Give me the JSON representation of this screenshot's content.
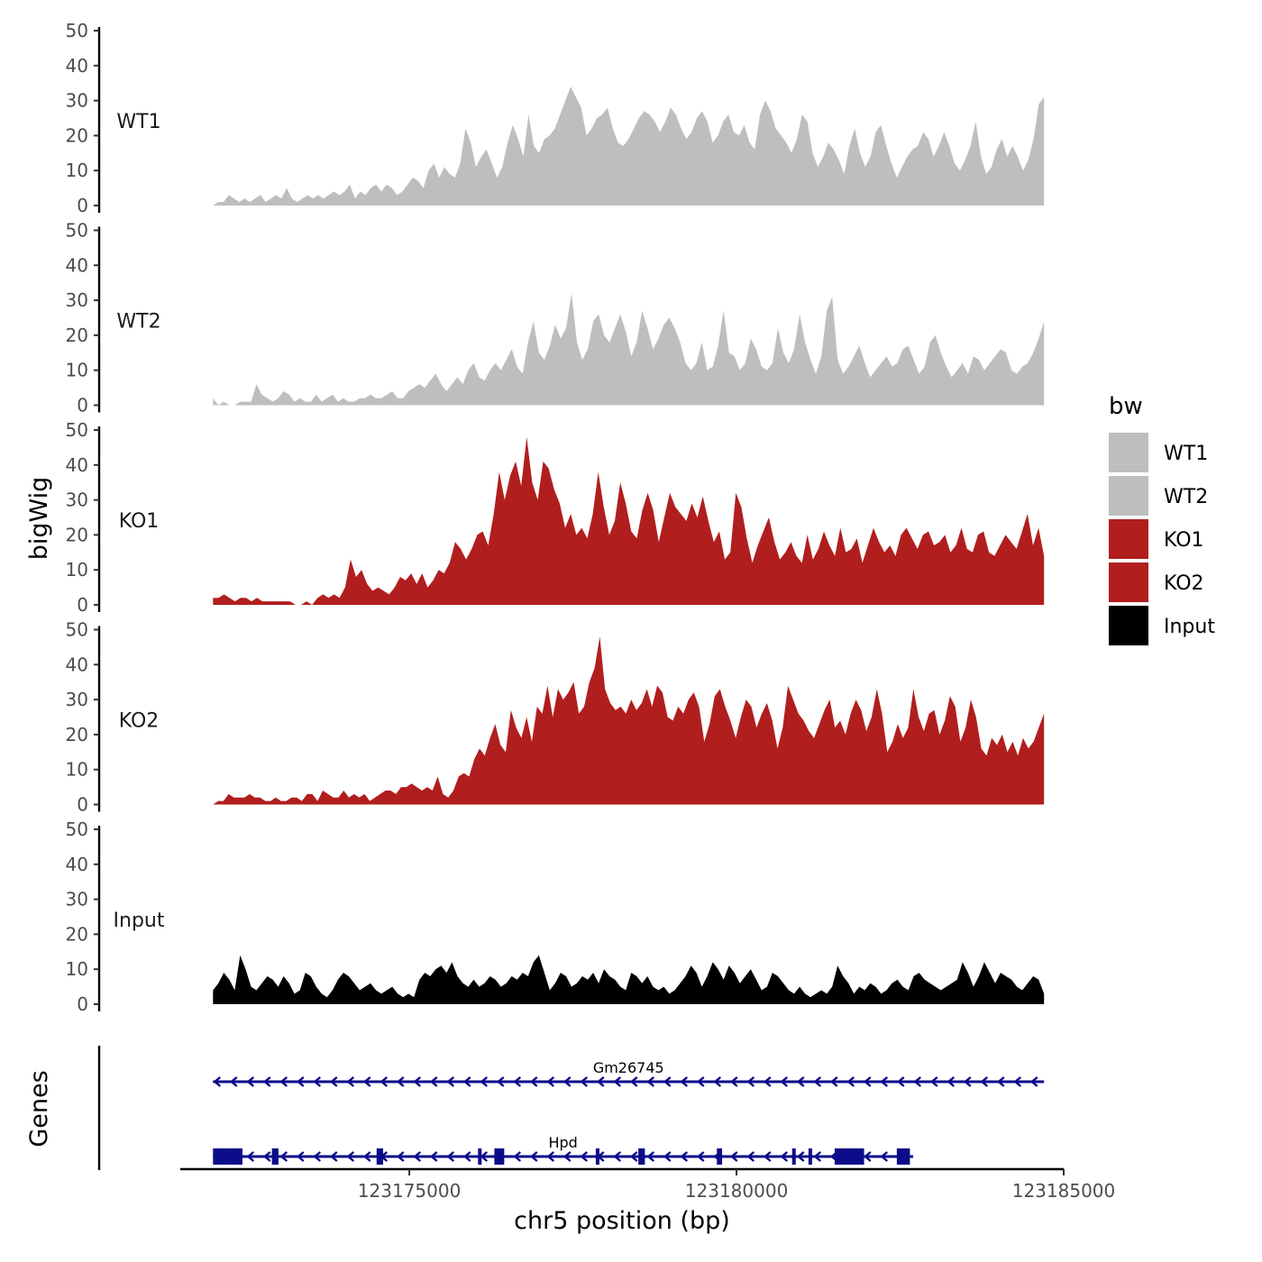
{
  "chart_data": {
    "type": "area",
    "chromosome_axis_label": "chr5 position (bp)",
    "y_axis_label": "bigWig",
    "genes_axis_label": "Genes",
    "xlim": [
      123171500,
      123185000
    ],
    "x_ticks": [
      123175000,
      123180000,
      123185000
    ],
    "x_tick_labels": [
      "123175000",
      "123180000",
      "123185000"
    ],
    "ylim": [
      0,
      50
    ],
    "y_ticks": [
      0,
      10,
      20,
      30,
      40,
      50
    ],
    "y_tick_labels": [
      "0",
      "10",
      "20",
      "30",
      "40",
      "50"
    ],
    "x_start": 123172000,
    "x_end": 123184700,
    "legend_title": "bw",
    "series": [
      {
        "name": "WT1",
        "color": "#bebebe",
        "values": [
          0,
          1,
          1,
          3,
          2,
          1,
          2,
          1,
          2,
          3,
          1,
          2,
          3,
          2,
          5,
          2,
          1,
          2,
          3,
          2,
          3,
          2,
          3,
          4,
          3,
          4,
          6,
          2,
          4,
          3,
          5,
          6,
          4,
          6,
          5,
          3,
          4,
          6,
          8,
          7,
          5,
          10,
          12,
          8,
          11,
          9,
          8,
          12,
          22,
          18,
          11,
          14,
          16,
          12,
          8,
          11,
          18,
          23,
          19,
          14,
          26,
          17,
          15,
          19,
          20,
          22,
          26,
          30,
          34,
          31,
          28,
          20,
          22,
          25,
          26,
          28,
          22,
          18,
          17,
          19,
          22,
          25,
          27,
          26,
          24,
          21,
          24,
          28,
          26,
          22,
          19,
          21,
          25,
          27,
          24,
          18,
          20,
          24,
          26,
          21,
          20,
          23,
          18,
          16,
          26,
          30,
          27,
          22,
          20,
          18,
          15,
          19,
          26,
          24,
          15,
          11,
          14,
          18,
          16,
          13,
          9,
          17,
          22,
          15,
          11,
          14,
          21,
          23,
          17,
          12,
          8,
          11,
          14,
          16,
          17,
          21,
          19,
          14,
          17,
          21,
          17,
          12,
          10,
          13,
          17,
          24,
          14,
          9,
          11,
          16,
          19,
          14,
          17,
          14,
          10,
          13,
          19,
          29,
          31
        ]
      },
      {
        "name": "WT2",
        "color": "#bebebe",
        "values": [
          2,
          0,
          1,
          0,
          0,
          1,
          1,
          1,
          6,
          3,
          2,
          1,
          2,
          4,
          3,
          1,
          2,
          1,
          1,
          3,
          1,
          2,
          3,
          1,
          2,
          1,
          1,
          2,
          2,
          3,
          2,
          2,
          3,
          4,
          2,
          2,
          4,
          5,
          6,
          5,
          7,
          9,
          6,
          4,
          6,
          8,
          6,
          10,
          12,
          8,
          7,
          10,
          12,
          10,
          13,
          16,
          11,
          9,
          18,
          24,
          15,
          13,
          17,
          23,
          19,
          22,
          32,
          18,
          13,
          16,
          24,
          26,
          20,
          18,
          22,
          26,
          21,
          14,
          18,
          27,
          22,
          16,
          19,
          23,
          25,
          22,
          18,
          12,
          10,
          12,
          18,
          10,
          11,
          17,
          27,
          15,
          14,
          10,
          12,
          19,
          16,
          11,
          10,
          12,
          22,
          15,
          12,
          16,
          26,
          18,
          13,
          9,
          14,
          27,
          31,
          13,
          9,
          11,
          14,
          17,
          12,
          8,
          10,
          12,
          14,
          11,
          12,
          16,
          17,
          13,
          9,
          11,
          18,
          20,
          15,
          11,
          8,
          10,
          12,
          9,
          14,
          13,
          10,
          12,
          14,
          16,
          15,
          10,
          9,
          11,
          12,
          15,
          19,
          24
        ]
      },
      {
        "name": "KO1",
        "color": "#b11e1e",
        "values": [
          2,
          2,
          3,
          2,
          1,
          2,
          2,
          1,
          2,
          1,
          1,
          1,
          1,
          1,
          1,
          0,
          0,
          1,
          0,
          2,
          3,
          2,
          3,
          2,
          5,
          13,
          8,
          10,
          6,
          4,
          5,
          4,
          3,
          5,
          8,
          7,
          9,
          6,
          9,
          5,
          7,
          10,
          9,
          12,
          18,
          16,
          13,
          16,
          20,
          21,
          17,
          26,
          38,
          30,
          37,
          41,
          34,
          48,
          35,
          30,
          41,
          39,
          33,
          29,
          22,
          26,
          20,
          22,
          19,
          26,
          38,
          28,
          20,
          24,
          35,
          29,
          21,
          19,
          27,
          32,
          27,
          18,
          25,
          32,
          28,
          26,
          24,
          29,
          25,
          31,
          24,
          18,
          21,
          13,
          15,
          32,
          28,
          19,
          12,
          17,
          21,
          25,
          18,
          13,
          15,
          18,
          14,
          12,
          20,
          13,
          16,
          21,
          17,
          14,
          22,
          15,
          16,
          19,
          12,
          17,
          22,
          18,
          15,
          17,
          14,
          20,
          22,
          19,
          16,
          20,
          21,
          17,
          18,
          20,
          15,
          17,
          22,
          16,
          15,
          20,
          21,
          15,
          14,
          17,
          20,
          18,
          16,
          21,
          26,
          17,
          22,
          14
        ]
      },
      {
        "name": "KO2",
        "color": "#b11e1e",
        "values": [
          0,
          1,
          1,
          3,
          2,
          2,
          2,
          3,
          2,
          2,
          1,
          1,
          2,
          1,
          1,
          2,
          2,
          1,
          3,
          3,
          1,
          4,
          3,
          2,
          2,
          4,
          2,
          3,
          2,
          3,
          1,
          2,
          3,
          4,
          4,
          3,
          5,
          5,
          6,
          5,
          4,
          5,
          4,
          8,
          3,
          2,
          4,
          8,
          9,
          8,
          13,
          16,
          14,
          19,
          23,
          17,
          15,
          27,
          22,
          19,
          25,
          18,
          28,
          26,
          34,
          25,
          33,
          30,
          32,
          35,
          26,
          28,
          35,
          39,
          48,
          33,
          29,
          27,
          28,
          26,
          30,
          27,
          29,
          33,
          28,
          34,
          32,
          25,
          24,
          28,
          26,
          30,
          32,
          28,
          18,
          23,
          31,
          33,
          28,
          24,
          19,
          25,
          30,
          28,
          22,
          26,
          29,
          24,
          16,
          22,
          34,
          30,
          26,
          24,
          21,
          19,
          23,
          27,
          30,
          22,
          24,
          20,
          26,
          30,
          27,
          21,
          25,
          33,
          26,
          15,
          18,
          23,
          19,
          22,
          33,
          25,
          21,
          26,
          27,
          20,
          24,
          31,
          28,
          18,
          22,
          30,
          25,
          16,
          14,
          19,
          17,
          20,
          15,
          18,
          14,
          19,
          16,
          18,
          22,
          26
        ]
      },
      {
        "name": "Input",
        "color": "#000000",
        "values": [
          4,
          6,
          9,
          7,
          4,
          14,
          10,
          5,
          4,
          6,
          8,
          7,
          5,
          8,
          6,
          3,
          4,
          9,
          8,
          5,
          3,
          2,
          4,
          7,
          9,
          8,
          6,
          4,
          5,
          6,
          4,
          3,
          4,
          5,
          3,
          2,
          3,
          2,
          7,
          9,
          8,
          10,
          11,
          9,
          12,
          8,
          6,
          5,
          7,
          5,
          6,
          8,
          7,
          5,
          6,
          8,
          7,
          9,
          8,
          12,
          14,
          9,
          4,
          6,
          9,
          8,
          5,
          6,
          8,
          7,
          9,
          6,
          10,
          8,
          7,
          5,
          4,
          9,
          8,
          6,
          8,
          5,
          4,
          5,
          3,
          4,
          6,
          8,
          11,
          9,
          5,
          8,
          12,
          10,
          7,
          11,
          9,
          6,
          8,
          10,
          7,
          4,
          5,
          9,
          8,
          6,
          4,
          3,
          5,
          3,
          2,
          3,
          4,
          3,
          5,
          11,
          8,
          6,
          3,
          5,
          4,
          6,
          5,
          3,
          4,
          6,
          7,
          5,
          4,
          8,
          9,
          7,
          6,
          5,
          4,
          5,
          6,
          7,
          12,
          9,
          5,
          8,
          12,
          9,
          6,
          9,
          8,
          7,
          5,
          4,
          6,
          8,
          7,
          3
        ]
      }
    ],
    "genes": [
      {
        "name": "Gm26745",
        "strand": "-",
        "start": 123172000,
        "end": 123184700,
        "exons": []
      },
      {
        "name": "Hpd",
        "strand": "-",
        "start": 123172000,
        "end": 123182700,
        "exons": [
          [
            123172000,
            123172250
          ],
          [
            123172250,
            123172450
          ],
          [
            123172900,
            123173000
          ],
          [
            123174500,
            123174600
          ],
          [
            123176050,
            123176100
          ],
          [
            123176300,
            123176450
          ],
          [
            123177850,
            123177880
          ],
          [
            123178500,
            123178600
          ],
          [
            123179700,
            123179780
          ],
          [
            123180850,
            123180900
          ],
          [
            123181100,
            123181150
          ],
          [
            123181500,
            123181950
          ],
          [
            123182450,
            123182650
          ]
        ]
      }
    ]
  }
}
